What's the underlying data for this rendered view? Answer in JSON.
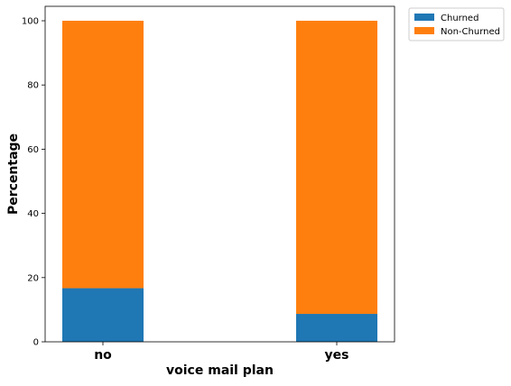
{
  "chart_data": {
    "type": "bar",
    "stacked": true,
    "categories": [
      "no",
      "yes"
    ],
    "series": [
      {
        "name": "Churned",
        "values": [
          16.7,
          8.7
        ],
        "color": "#1f77b4"
      },
      {
        "name": "Non-Churned",
        "values": [
          83.3,
          91.3
        ],
        "color": "#ff7f0e"
      }
    ],
    "xlabel": "voice mail plan",
    "ylabel": "Percentage",
    "ylim": [
      0,
      104.5
    ],
    "yticks": [
      0,
      20,
      40,
      60,
      80,
      100
    ],
    "grid": false,
    "legend_position": "outside-top-right"
  }
}
